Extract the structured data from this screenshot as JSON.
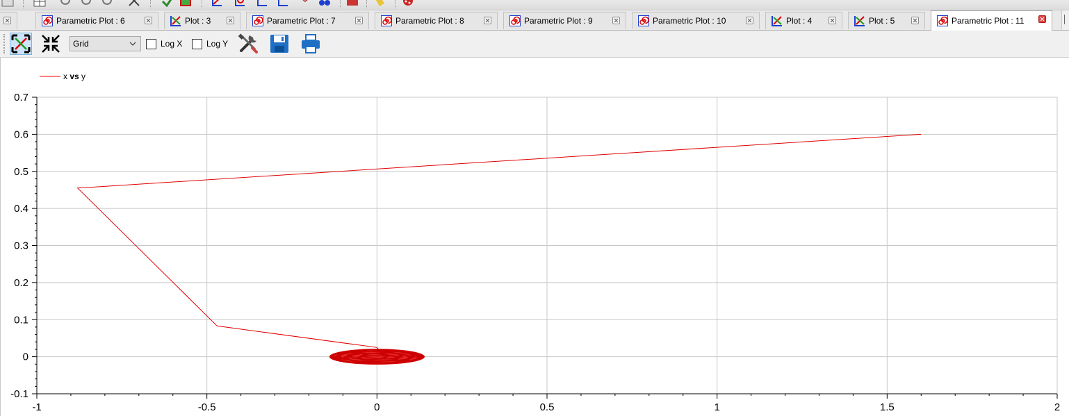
{
  "tabs": [
    {
      "label": "Parametric Plot : 6",
      "icon": "parametric-spiral-icon",
      "active": false
    },
    {
      "label": "Plot : 3",
      "icon": "xy-plot-icon",
      "active": false
    },
    {
      "label": "Parametric Plot : 7",
      "icon": "parametric-spiral-icon",
      "active": false
    },
    {
      "label": "Parametric Plot : 8",
      "icon": "parametric-spiral-icon",
      "active": false
    },
    {
      "label": "Parametric Plot : 9",
      "icon": "parametric-spiral-icon",
      "active": false
    },
    {
      "label": "Parametric Plot : 10",
      "icon": "parametric-spiral-icon",
      "active": false
    },
    {
      "label": "Plot : 4",
      "icon": "xy-plot-icon",
      "active": false
    },
    {
      "label": "Plot : 5",
      "icon": "xy-plot-icon",
      "active": false
    },
    {
      "label": "Parametric Plot : 11",
      "icon": "parametric-spiral-icon",
      "active": true
    }
  ],
  "toolbar": {
    "fit_icon": "fit-in-view-icon",
    "autoscale_icon": "autoscale-icon",
    "grid_select": {
      "value": "Grid"
    },
    "log_x": {
      "label": "Log X",
      "checked": false
    },
    "log_y": {
      "label": "Log Y",
      "checked": false
    },
    "setup_icon": "setup-tools-icon",
    "save_icon": "save-icon",
    "print_icon": "print-icon"
  },
  "legend": {
    "prefix": "x ",
    "vs": "vs",
    "suffix": " y",
    "color": "#ff0000"
  },
  "colors": {
    "curve": "#e00000",
    "grid": "#c8c8c8",
    "accent_active_close": "#e04343",
    "spiral": "#cc0000"
  },
  "chart_data": {
    "type": "line",
    "series": [
      {
        "name": "x vs y",
        "points": [
          [
            1.6,
            0.6
          ],
          [
            -0.88,
            0.455
          ],
          [
            -0.47,
            0.083
          ],
          [
            0.0,
            0.025
          ],
          [
            0.02,
            0.0
          ]
        ]
      }
    ],
    "dense_region": {
      "x_center": 0.0,
      "x_extent": [
        -0.14,
        0.14
      ],
      "y_extent": [
        -0.02,
        0.025
      ]
    },
    "xlim": [
      -1,
      2
    ],
    "ylim": [
      -0.1,
      0.7
    ],
    "xticks": [
      -1,
      -0.5,
      0,
      0.5,
      1,
      1.5,
      2
    ],
    "xtick_labels": [
      "-1",
      "-0.5",
      "0",
      "0.5",
      "1",
      "1.5",
      "2"
    ],
    "yticks": [
      -0.1,
      0,
      0.1,
      0.2,
      0.3,
      0.4,
      0.5,
      0.6,
      0.7
    ],
    "ytick_labels": [
      "-0.1",
      "0",
      "0.1",
      "0.2",
      "0.3",
      "0.4",
      "0.5",
      "0.6",
      "0.7"
    ],
    "grid": true,
    "legend_position": "top-left",
    "log_x": false,
    "log_y": false
  }
}
